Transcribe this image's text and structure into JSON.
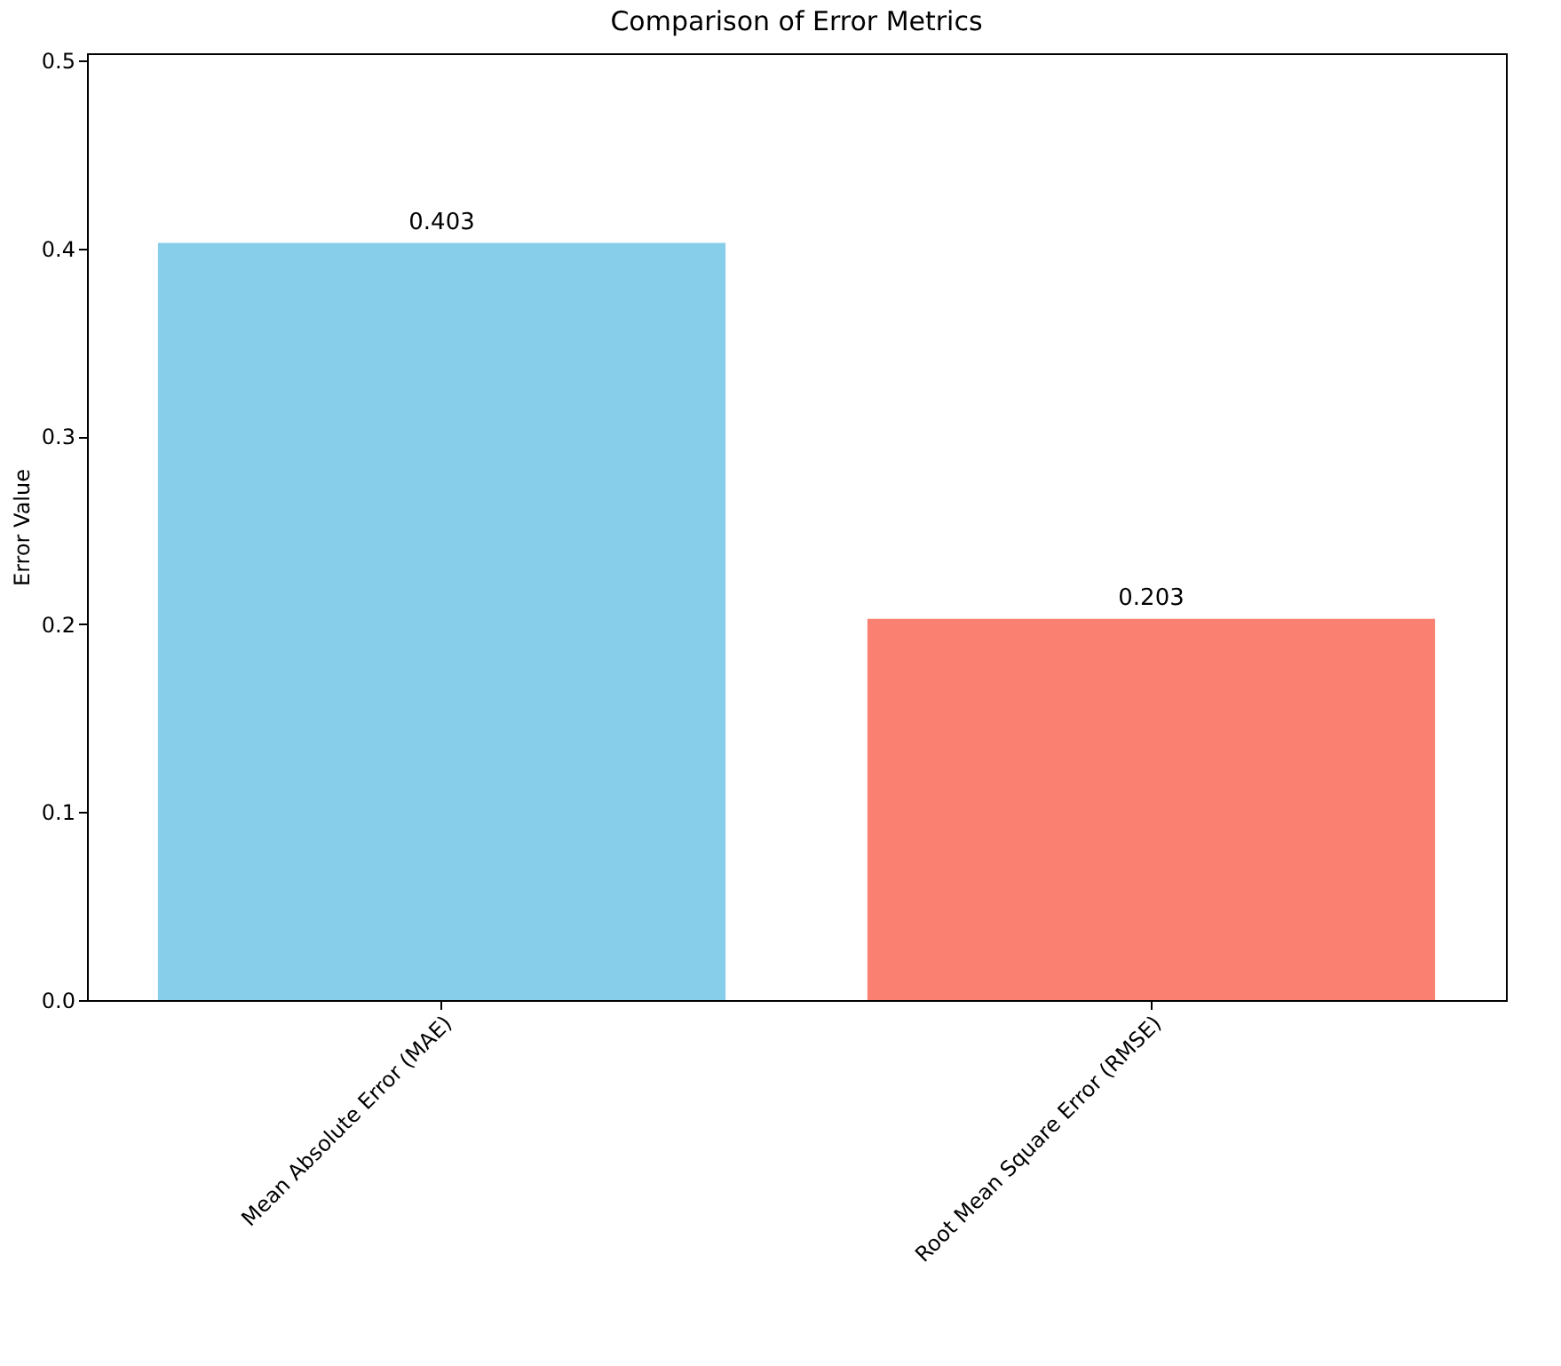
{
  "chart_data": {
    "type": "bar",
    "title": "Comparison of Error Metrics",
    "ylabel": "Error Value",
    "categories": [
      "Mean Absolute Error (MAE)",
      "Root Mean Square Error (RMSE)"
    ],
    "values": [
      0.403,
      0.203
    ],
    "colors": [
      "#87ceeb",
      "#fa8072"
    ],
    "ylim": [
      0,
      0.504
    ],
    "yticks": [
      {
        "value": 0,
        "label": "0.0"
      },
      0.1,
      0.2,
      0.3,
      0.4,
      0.5
    ],
    "data_labels": true,
    "grid": false
  }
}
